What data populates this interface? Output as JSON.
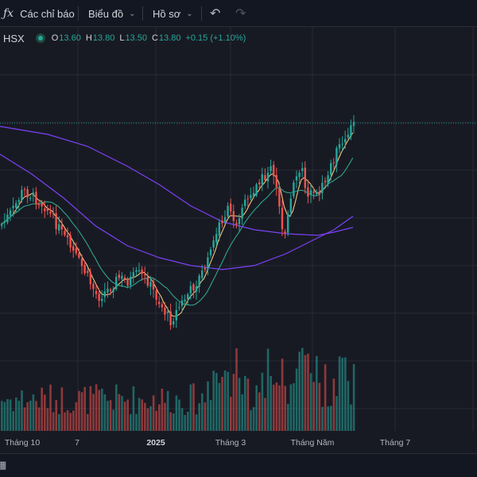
{
  "toolbar": {
    "indicators_label": "Các chỉ báo",
    "chart_type_label": "Biểu đồ",
    "profile_label": "Hồ sơ",
    "icons": [
      "fx-icon",
      "chevron-down-icon",
      "undo-icon",
      "redo-icon"
    ]
  },
  "legend": {
    "symbol": "HSX",
    "open_key": "O",
    "open": "13.60",
    "high_key": "H",
    "high": "13.80",
    "low_key": "L",
    "low": "13.50",
    "close_key": "C",
    "close": "13.80",
    "change": "+0.15 (+1.10%)"
  },
  "colors": {
    "up": "#26a69a",
    "down": "#ef5350",
    "ma_short": "#f2c57c",
    "ma_mid": "#2ea58a",
    "ma_long": "#7b42f6",
    "background": "#181a23"
  },
  "chart_data": {
    "type": "candlestick",
    "price_reference": 13.8,
    "x_tick_labels": [
      "Tháng 10",
      "7",
      "2025",
      "Tháng 3",
      "Tháng Năm",
      "Tháng 7"
    ],
    "x_tick_bold": [
      false,
      false,
      true,
      false,
      false,
      false
    ],
    "series": [
      {
        "name": "",
        "kind": "candles"
      },
      {
        "name": "",
        "kind": "moving-average",
        "color": "#f2c57c"
      },
      {
        "name": "",
        "kind": "moving-average",
        "color": "#2ea58a"
      },
      {
        "name": "",
        "kind": "moving-average",
        "color": "#7b42f6"
      },
      {
        "name": "",
        "kind": "volume"
      }
    ],
    "grid": true
  },
  "bottom": {
    "icon": "calendar-icon"
  }
}
